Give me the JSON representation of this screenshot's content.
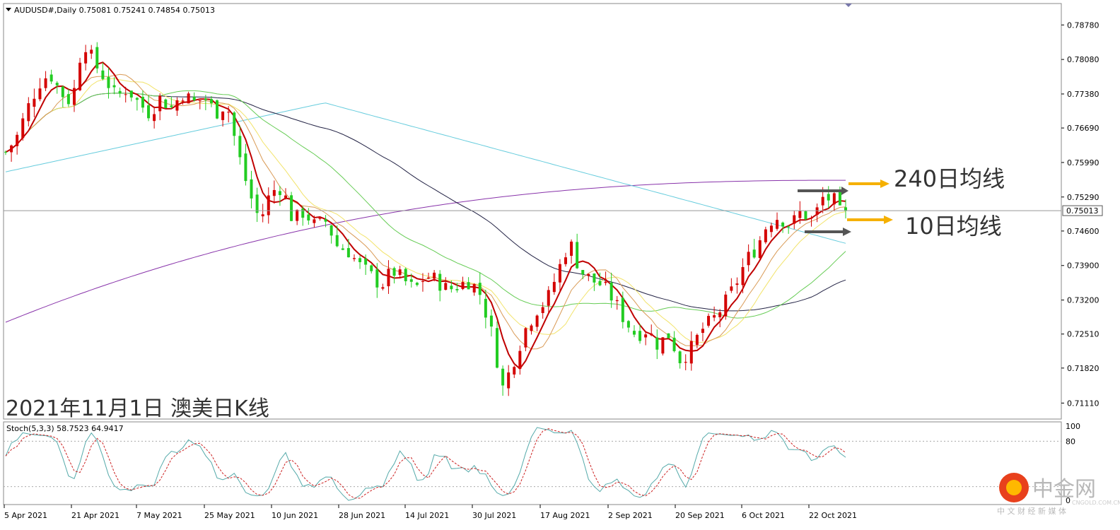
{
  "header": {
    "symbol_line": "AUDUSD#,Daily  0.75081 0.75241 0.74854 0.75013"
  },
  "annotations": {
    "ma240_label": "240日均线",
    "ma10_label": "10日均线",
    "date_title": "2021年11月1日 澳美日K线"
  },
  "price_axis": {
    "ticks": [
      "0.78780",
      "0.78080",
      "0.77380",
      "0.76690",
      "0.75990",
      "0.75290",
      "0.74600",
      "0.73900",
      "0.73200",
      "0.72510",
      "0.71820",
      "0.71110"
    ],
    "current_price": "0.75013"
  },
  "stoch": {
    "label": "Stoch(5,3,3) 58.7523 64.9417",
    "ticks": [
      "100",
      "80",
      "0"
    ]
  },
  "date_axis": {
    "ticks": [
      "5 Apr 2021",
      "21 Apr 2021",
      "7 May 2021",
      "25 May 2021",
      "10 Jun 2021",
      "28 Jun 2021",
      "14 Jul 2021",
      "30 Jul 2021",
      "17 Aug 2021",
      "2 Sep 2021",
      "20 Sep 2021",
      "6 Oct 2021",
      "22 Oct 2021"
    ]
  },
  "watermark": {
    "brand": "中金网",
    "domain": "CNGOLD.COM.CN",
    "slogan": "中 文 财 经 新 媒 体"
  },
  "colors": {
    "bull": "#d40000",
    "bear": "#22cc22",
    "ma10": "#c00000",
    "ma20": "#d99a55",
    "ma30": "#f2e36a",
    "ma60": "#66cc55",
    "ma120": "#222244",
    "ma180": "#66ccdd",
    "ma240": "#8833aa",
    "stoch_main": "#55aaaa",
    "stoch_signal": "#cc2222",
    "arrow_orange": "#f5b000",
    "arrow_gray": "#555555"
  },
  "chart_data": {
    "type": "candlestick",
    "symbol": "AUDUSD#",
    "timeframe": "Daily",
    "ylim": [
      0.708,
      0.792
    ],
    "x": [
      "5 Apr 2021",
      "21 Apr 2021",
      "7 May 2021",
      "25 May 2021",
      "10 Jun 2021",
      "28 Jun 2021",
      "14 Jul 2021",
      "30 Jul 2021",
      "17 Aug 2021",
      "2 Sep 2021",
      "20 Sep 2021",
      "6 Oct 2021",
      "22 Oct 2021"
    ],
    "close_path": [
      0.762,
      0.765,
      0.771,
      0.776,
      0.778,
      0.774,
      0.772,
      0.785,
      0.78,
      0.777,
      0.773,
      0.775,
      0.772,
      0.77,
      0.773,
      0.771,
      0.774,
      0.772,
      0.773,
      0.77,
      0.772,
      0.762,
      0.754,
      0.748,
      0.754,
      0.755,
      0.748,
      0.75,
      0.747,
      0.748,
      0.743,
      0.742,
      0.739,
      0.737,
      0.735,
      0.738,
      0.736,
      0.734,
      0.737,
      0.736,
      0.734,
      0.735,
      0.736,
      0.733,
      0.725,
      0.714,
      0.72,
      0.726,
      0.73,
      0.732,
      0.738,
      0.744,
      0.738,
      0.736,
      0.735,
      0.732,
      0.728,
      0.725,
      0.726,
      0.723,
      0.725,
      0.72,
      0.722,
      0.726,
      0.728,
      0.731,
      0.735,
      0.74,
      0.743,
      0.748,
      0.749,
      0.747,
      0.75,
      0.748,
      0.753,
      0.752,
      0.75
    ],
    "last_ohlc": {
      "open": 0.75081,
      "high": 0.75241,
      "low": 0.74854,
      "close": 0.75013
    },
    "moving_averages": [
      {
        "name": "MA10",
        "end": 0.7505
      },
      {
        "name": "MA240",
        "end": 0.7563
      }
    ],
    "stochastic": {
      "params": "5,3,3",
      "main": 58.7523,
      "signal": 64.9417,
      "levels": [
        20,
        80
      ],
      "ylim": [
        0,
        100
      ]
    }
  }
}
